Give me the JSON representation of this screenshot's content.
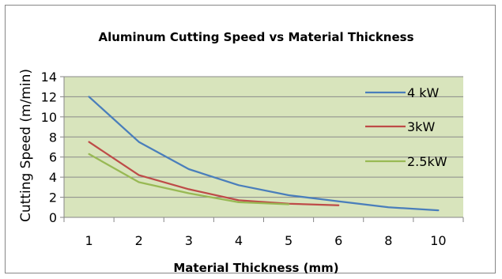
{
  "chart_data": {
    "type": "line",
    "title": "Aluminum Cutting Speed vs Material Thickness",
    "xlabel": "Material Thickness (mm)",
    "ylabel": "Cutting Speed (m/min)",
    "categories": [
      "1",
      "2",
      "3",
      "4",
      "5",
      "6",
      "8",
      "10"
    ],
    "ylim": [
      0,
      14
    ],
    "yticks": [
      "0",
      "2",
      "4",
      "6",
      "8",
      "10",
      "12",
      "14"
    ],
    "grid": true,
    "legend_position": "right",
    "plot_background": "#d8e4bc",
    "series": [
      {
        "name": "4 kW",
        "color": "#4a7ebb",
        "values": [
          12.0,
          7.5,
          4.8,
          3.2,
          2.2,
          1.6,
          1.0,
          0.7
        ]
      },
      {
        "name": "3kW",
        "color": "#be4b48",
        "values": [
          7.5,
          4.2,
          2.8,
          1.7,
          1.35,
          1.2,
          null,
          null
        ]
      },
      {
        "name": "2.5kW",
        "color": "#98b954",
        "values": [
          6.3,
          3.5,
          2.4,
          1.5,
          1.3,
          null,
          null,
          null
        ]
      }
    ]
  }
}
